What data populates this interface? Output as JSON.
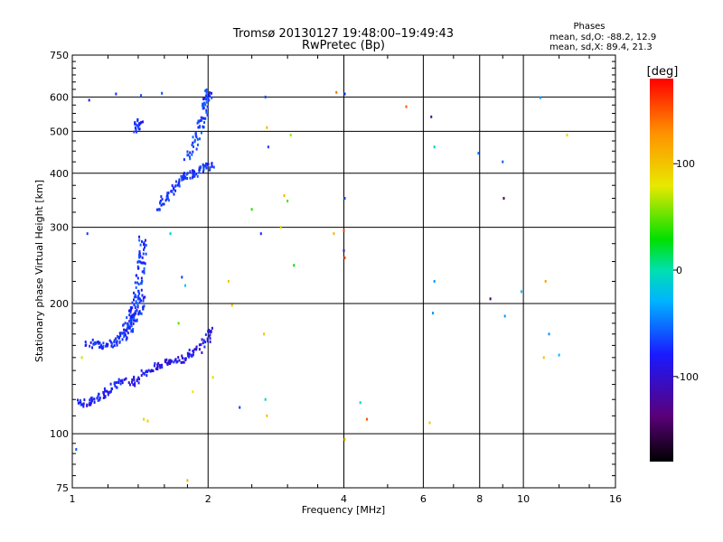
{
  "header": {
    "title": "Tromsø 20130127 19:48:00–19:49:43",
    "subtitle": "RwPretec (Bp)"
  },
  "stats": {
    "heading": "Phases",
    "line_o": "mean, sd,O:  -88.2, 12.9",
    "line_x": "mean, sd,X:  89.4, 21.3"
  },
  "colorbar": {
    "label": "[deg]",
    "ticks": [
      {
        "value": 100,
        "label": "100"
      },
      {
        "value": 0,
        "label": "0"
      },
      {
        "value": -100,
        "label": "-100"
      }
    ],
    "range": [
      -180,
      180
    ]
  },
  "chart_data": {
    "type": "scatter",
    "xlabel": "Frequency [MHz]",
    "ylabel": "Stationary phase Virtual Height [km]",
    "xscale": "log",
    "yscale": "log",
    "xlim": [
      1,
      16
    ],
    "ylim": [
      75,
      750
    ],
    "grid": true,
    "x_ticks": [
      1,
      2,
      4,
      6,
      8,
      10,
      16
    ],
    "x_tick_labels": [
      "1",
      "2",
      "4",
      "6",
      "8",
      "10",
      "16"
    ],
    "y_ticks": [
      75,
      100,
      200,
      300,
      400,
      500,
      600,
      750
    ],
    "y_tick_labels": [
      "75",
      "100",
      "200",
      "300",
      "400",
      "500",
      "600",
      "750"
    ],
    "traces": [
      {
        "x": [
          1.04,
          1.07,
          1.1,
          1.14,
          1.18,
          1.22,
          1.26,
          1.3
        ],
        "y": [
          118,
          117,
          119,
          121,
          124,
          127,
          130,
          135
        ],
        "phase": -100
      },
      {
        "x": [
          1.35,
          1.39,
          1.45,
          1.52,
          1.59,
          1.65,
          1.72,
          1.8,
          1.87,
          1.93,
          2.0,
          2.04
        ],
        "y": [
          130,
          134,
          138,
          142,
          145,
          147,
          148,
          150,
          154,
          160,
          168,
          176
        ],
        "phase": -105
      },
      {
        "x": [
          1.08,
          1.12,
          1.16,
          1.2,
          1.24,
          1.28,
          1.31,
          1.34,
          1.36,
          1.38,
          1.4,
          1.42,
          1.43
        ],
        "y": [
          163,
          160,
          160,
          161,
          163,
          166,
          170,
          175,
          180,
          186,
          192,
          200,
          208
        ],
        "phase": -95
      },
      {
        "x": [
          1.3,
          1.33,
          1.36,
          1.38,
          1.4,
          1.41,
          1.42,
          1.43,
          1.43,
          1.42
        ],
        "y": [
          172,
          182,
          190,
          200,
          212,
          225,
          240,
          255,
          270,
          285
        ],
        "phase": -90
      },
      {
        "x": [
          1.55,
          1.6,
          1.65,
          1.7,
          1.75,
          1.8,
          1.85,
          1.9,
          1.95,
          2.0,
          2.05
        ],
        "y": [
          330,
          345,
          360,
          375,
          390,
          395,
          400,
          405,
          410,
          415,
          420
        ],
        "phase": -92
      },
      {
        "x": [
          1.8,
          1.85,
          1.9,
          1.93,
          1.96,
          1.98,
          2.0,
          2.02
        ],
        "y": [
          430,
          460,
          490,
          520,
          550,
          580,
          605,
          625
        ],
        "phase": -88
      },
      {
        "x": [
          1.38,
          1.4,
          1.42
        ],
        "y": [
          500,
          520,
          540
        ],
        "phase": -95
      }
    ],
    "points": [
      {
        "x": 1.02,
        "y": 92,
        "phase": -80
      },
      {
        "x": 1.05,
        "y": 150,
        "phase": 70
      },
      {
        "x": 1.08,
        "y": 290,
        "phase": -90
      },
      {
        "x": 1.09,
        "y": 590,
        "phase": -100
      },
      {
        "x": 1.25,
        "y": 610,
        "phase": -95
      },
      {
        "x": 1.42,
        "y": 605,
        "phase": -80
      },
      {
        "x": 1.44,
        "y": 108,
        "phase": 90
      },
      {
        "x": 1.47,
        "y": 107,
        "phase": 95
      },
      {
        "x": 1.58,
        "y": 612,
        "phase": -85
      },
      {
        "x": 1.65,
        "y": 290,
        "phase": -20
      },
      {
        "x": 1.72,
        "y": 180,
        "phase": 40
      },
      {
        "x": 1.75,
        "y": 230,
        "phase": -90
      },
      {
        "x": 1.78,
        "y": 220,
        "phase": -30
      },
      {
        "x": 1.8,
        "y": 78,
        "phase": 110
      },
      {
        "x": 1.85,
        "y": 125,
        "phase": 80
      },
      {
        "x": 2.05,
        "y": 135,
        "phase": 90
      },
      {
        "x": 2.22,
        "y": 225,
        "phase": 100
      },
      {
        "x": 2.26,
        "y": 198,
        "phase": 100
      },
      {
        "x": 2.35,
        "y": 115,
        "phase": -90
      },
      {
        "x": 2.5,
        "y": 330,
        "phase": 30
      },
      {
        "x": 2.62,
        "y": 290,
        "phase": -95
      },
      {
        "x": 2.66,
        "y": 170,
        "phase": 100
      },
      {
        "x": 2.68,
        "y": 120,
        "phase": -10
      },
      {
        "x": 2.7,
        "y": 110,
        "phase": 100
      },
      {
        "x": 2.68,
        "y": 600,
        "phase": -85
      },
      {
        "x": 2.7,
        "y": 510,
        "phase": 110
      },
      {
        "x": 2.72,
        "y": 460,
        "phase": -90
      },
      {
        "x": 2.9,
        "y": 300,
        "phase": 90
      },
      {
        "x": 2.95,
        "y": 355,
        "phase": 110
      },
      {
        "x": 3.0,
        "y": 345,
        "phase": 40
      },
      {
        "x": 3.05,
        "y": 490,
        "phase": 60
      },
      {
        "x": 3.1,
        "y": 245,
        "phase": 20
      },
      {
        "x": 3.85,
        "y": 615,
        "phase": 140
      },
      {
        "x": 3.8,
        "y": 290,
        "phase": 110
      },
      {
        "x": 4.0,
        "y": 295,
        "phase": 160
      },
      {
        "x": 4.0,
        "y": 265,
        "phase": -120
      },
      {
        "x": 4.02,
        "y": 255,
        "phase": 150
      },
      {
        "x": 4.02,
        "y": 350,
        "phase": -80
      },
      {
        "x": 4.02,
        "y": 610,
        "phase": -90
      },
      {
        "x": 4.02,
        "y": 97,
        "phase": 100
      },
      {
        "x": 4.35,
        "y": 118,
        "phase": -10
      },
      {
        "x": 4.5,
        "y": 108,
        "phase": 150
      },
      {
        "x": 5.5,
        "y": 570,
        "phase": 150
      },
      {
        "x": 6.25,
        "y": 540,
        "phase": -130
      },
      {
        "x": 6.35,
        "y": 460,
        "phase": -20
      },
      {
        "x": 6.35,
        "y": 225,
        "phase": -60
      },
      {
        "x": 6.3,
        "y": 190,
        "phase": -60
      },
      {
        "x": 6.2,
        "y": 106,
        "phase": 100
      },
      {
        "x": 7.95,
        "y": 445,
        "phase": -70
      },
      {
        "x": 8.45,
        "y": 205,
        "phase": -150
      },
      {
        "x": 9.0,
        "y": 425,
        "phase": -80
      },
      {
        "x": 9.05,
        "y": 350,
        "phase": -150
      },
      {
        "x": 9.1,
        "y": 187,
        "phase": -60
      },
      {
        "x": 9.9,
        "y": 213,
        "phase": -40
      },
      {
        "x": 10.9,
        "y": 598,
        "phase": -60
      },
      {
        "x": 11.2,
        "y": 225,
        "phase": 120
      },
      {
        "x": 11.1,
        "y": 150,
        "phase": 100
      },
      {
        "x": 11.4,
        "y": 170,
        "phase": -60
      },
      {
        "x": 12.0,
        "y": 152,
        "phase": -40
      },
      {
        "x": 12.5,
        "y": 490,
        "phase": 90
      }
    ]
  }
}
